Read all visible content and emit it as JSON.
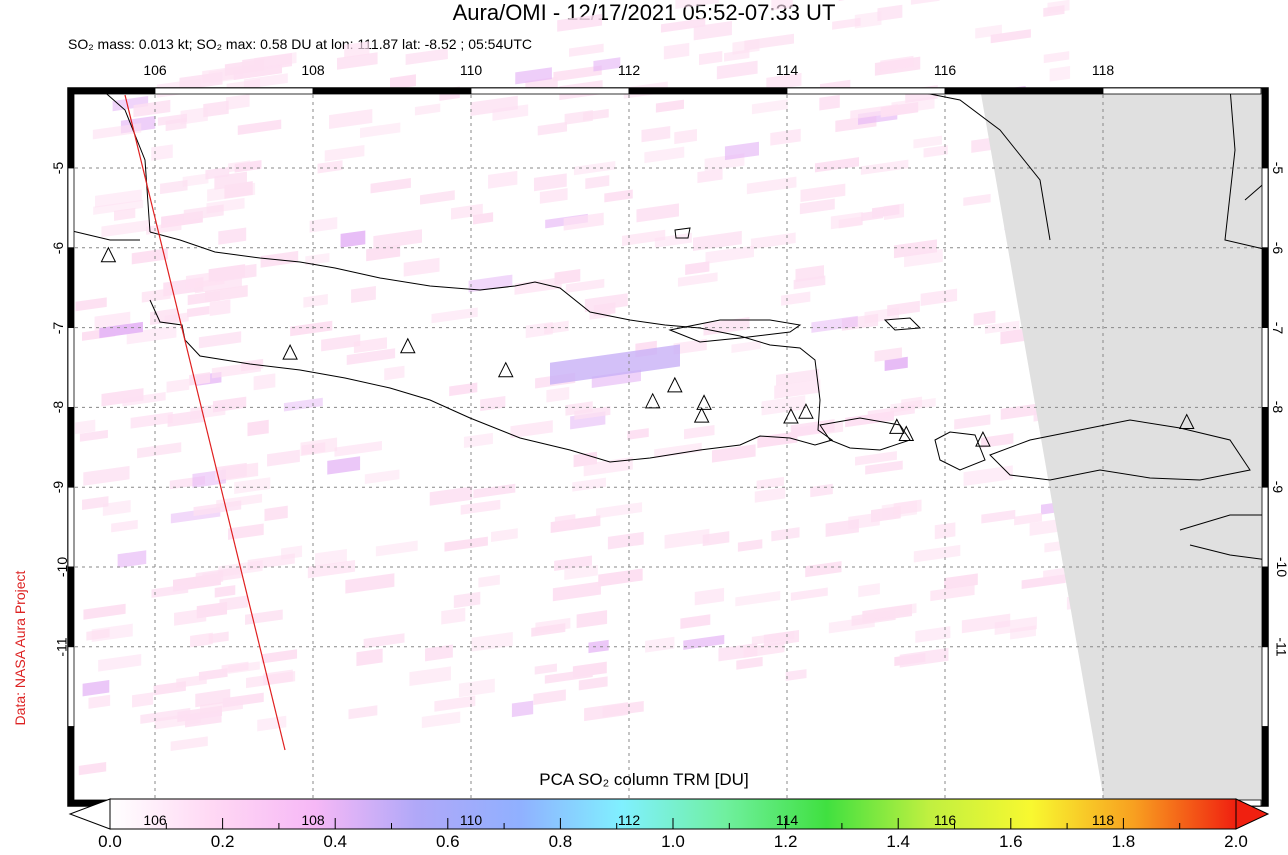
{
  "title": "Aura/OMI - 12/17/2021 05:52-07:33 UT",
  "subtitle": "SO₂ mass: 0.013 kt; SO₂ max: 0.58 DU at lon: 111.87 lat: -8.52 ; 05:54UTC",
  "credit": "Data: NASA Aura Project",
  "lon_ticks": [
    "106",
    "108",
    "110",
    "112",
    "114",
    "116",
    "118"
  ],
  "lat_ticks": [
    "-5",
    "-6",
    "-7",
    "-8",
    "-9",
    "-10",
    "-11"
  ],
  "colorbar": {
    "title": "PCA SO₂ column TRM [DU]",
    "labels": [
      "0.0",
      "0.2",
      "0.4",
      "0.6",
      "0.8",
      "1.0",
      "1.2",
      "1.4",
      "1.6",
      "1.8",
      "2.0"
    ],
    "colors": [
      "#ffffff",
      "#ffd8f4",
      "#f6b8f6",
      "#b0a8f8",
      "#90b0ff",
      "#80f0ff",
      "#70f0a0",
      "#40e040",
      "#c0f040",
      "#f8f830",
      "#f8a020",
      "#f02010"
    ]
  },
  "map": {
    "lon_range": [
      104.9,
      120.1
    ],
    "lat_range": [
      -13.0,
      -4.0
    ],
    "volcanoes": [
      [
        105.41,
        -6.1
      ],
      [
        107.71,
        -7.32
      ],
      [
        109.2,
        -7.24
      ],
      [
        110.44,
        -7.54
      ],
      [
        112.3,
        -7.93
      ],
      [
        112.58,
        -7.73
      ],
      [
        112.95,
        -7.95
      ],
      [
        112.92,
        -8.11
      ],
      [
        114.05,
        -8.12
      ],
      [
        114.24,
        -8.06
      ],
      [
        115.39,
        -8.25
      ],
      [
        115.51,
        -8.34
      ],
      [
        116.48,
        -8.41
      ],
      [
        119.06,
        -8.19
      ]
    ]
  }
}
